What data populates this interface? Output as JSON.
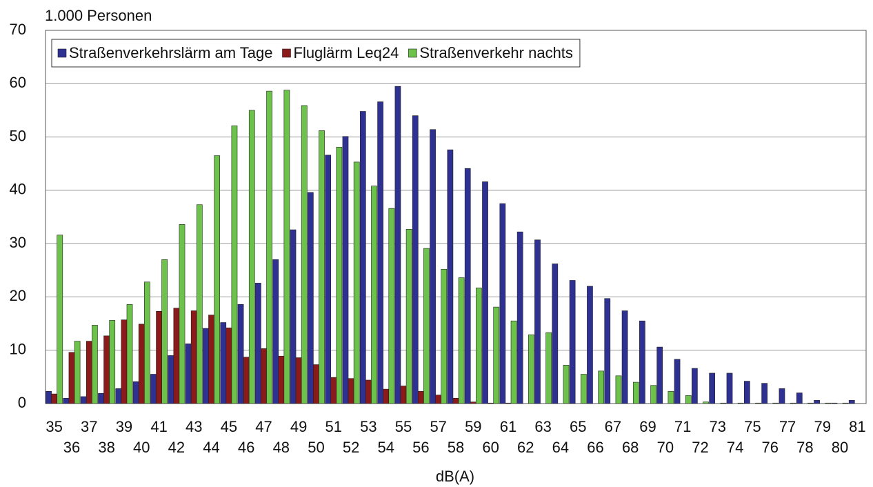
{
  "chart_data": {
    "type": "bar",
    "y_label": "1.000 Personen",
    "x_label": "dB(A)",
    "categories": [
      "35",
      "36",
      "37",
      "38",
      "39",
      "40",
      "41",
      "42",
      "43",
      "44",
      "45",
      "46",
      "47",
      "48",
      "49",
      "50",
      "51",
      "52",
      "53",
      "54",
      "55",
      "56",
      "57",
      "58",
      "59",
      "60",
      "61",
      "62",
      "63",
      "64",
      "65",
      "66",
      "67",
      "68",
      "69",
      "70",
      "71",
      "72",
      "73",
      "74",
      "75",
      "76",
      "77",
      "78",
      "79",
      "80",
      "81"
    ],
    "series": [
      {
        "name": "Straßenverkehrslärm am Tage",
        "color": "#2e3192",
        "values": [
          2.3,
          1.0,
          1.3,
          1.9,
          2.8,
          4.1,
          5.5,
          9.0,
          11.2,
          14.1,
          15.2,
          18.6,
          22.6,
          27.0,
          32.6,
          39.6,
          46.6,
          50.1,
          54.8,
          56.6,
          59.5,
          54.0,
          51.4,
          47.6,
          44.1,
          41.6,
          37.5,
          32.2,
          30.7,
          26.2,
          23.1,
          22.0,
          19.7,
          17.4,
          15.5,
          10.6,
          8.3,
          6.6,
          5.7,
          5.7,
          4.2,
          3.8,
          2.8,
          2.0,
          0.6,
          0.1,
          0.6
        ]
      },
      {
        "name": "Fluglärm Leq24",
        "color": "#8b1a1a",
        "values": [
          1.8,
          9.6,
          11.7,
          12.7,
          15.7,
          14.9,
          17.3,
          17.9,
          17.4,
          16.6,
          14.2,
          8.7,
          10.3,
          8.9,
          8.6,
          7.3,
          4.9,
          4.7,
          4.4,
          2.7,
          3.3,
          2.3,
          1.6,
          1.0,
          0.3,
          0.1,
          0.1,
          0,
          0,
          0,
          0,
          0,
          0,
          0,
          0,
          0,
          0,
          0,
          0,
          0,
          0,
          0,
          0,
          0,
          0,
          0,
          0
        ]
      },
      {
        "name": "Straßenverkehr nachts",
        "color": "#6cc24a",
        "values": [
          31.6,
          11.7,
          14.7,
          15.6,
          18.6,
          22.8,
          27.0,
          33.6,
          37.3,
          46.5,
          52.1,
          55.0,
          58.6,
          58.8,
          55.9,
          51.2,
          48.1,
          45.3,
          40.8,
          36.6,
          32.7,
          29.1,
          25.2,
          23.6,
          21.7,
          18.1,
          15.5,
          12.9,
          13.3,
          7.2,
          5.5,
          6.1,
          5.2,
          4.0,
          3.4,
          2.3,
          1.5,
          0.3,
          0.1,
          0.1,
          0.1,
          0.1,
          0.1,
          0.1,
          0.1,
          0.1,
          0
        ]
      }
    ],
    "ylim": [
      0,
      70
    ],
    "yticks": [
      0,
      10,
      20,
      30,
      40,
      50,
      60,
      70
    ],
    "grid": true,
    "legend": "top-left"
  }
}
